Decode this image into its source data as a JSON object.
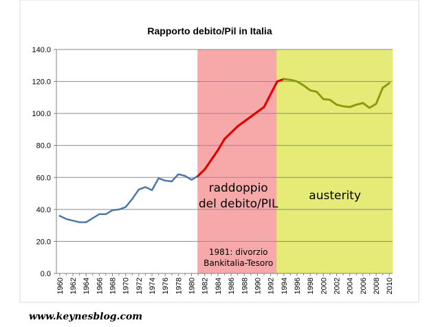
{
  "colors": {
    "pre_1981_line": "#4a78a8",
    "divorce_line": "#e00000",
    "austerity_line": "#8c9a10",
    "divorce_band": "#f7a9a9",
    "austerity_band": "#e6ea76",
    "gridline": "#8a8a8a"
  },
  "watermark": "www.keynesblog.com",
  "chart_data": {
    "type": "line",
    "title": "Rapporto debito/Pil in Italia",
    "xlabel": "",
    "ylabel": "",
    "ylim": [
      0,
      140
    ],
    "yticks": [
      "0.0",
      "20.0",
      "40.0",
      "60.0",
      "80.0",
      "100.0",
      "120.0",
      "140.0"
    ],
    "xlim": [
      1960,
      2010
    ],
    "xticks": [
      "1960",
      "1962",
      "1964",
      "1966",
      "1968",
      "1970",
      "1972",
      "1974",
      "1976",
      "1978",
      "1980",
      "1982",
      "1984",
      "1986",
      "1988",
      "1990",
      "1992",
      "1994",
      "1996",
      "1998",
      "2000",
      "2002",
      "2004",
      "2006",
      "2008",
      "2010"
    ],
    "grid": true,
    "legend": "none",
    "bands": [
      {
        "x_start": 1981,
        "x_end": 1993,
        "label": "raddoppio\ndel debito/PIL",
        "note": "1981: divorzio\nBankitalia-Tesoro"
      },
      {
        "x_start": 1993,
        "x_end": 2010,
        "label": "austerity"
      }
    ],
    "series": [
      {
        "x": [
          1960,
          1961,
          1962,
          1963,
          1964,
          1965,
          1966,
          1967,
          1968,
          1969,
          1970,
          1971,
          1972,
          1973,
          1974,
          1975,
          1976,
          1977,
          1978,
          1979,
          1980,
          1981
        ],
        "values": [
          36.0,
          34.0,
          33.0,
          32.0,
          32.0,
          34.5,
          37.0,
          37.0,
          39.5,
          40.0,
          41.5,
          46.5,
          52.5,
          54.0,
          52.0,
          59.5,
          58.0,
          57.5,
          62.0,
          61.0,
          58.5,
          61.0
        ]
      },
      {
        "x": [
          1981,
          1982,
          1983,
          1984,
          1985,
          1986,
          1987,
          1988,
          1989,
          1990,
          1991,
          1992,
          1993,
          1994
        ],
        "values": [
          61.0,
          65.0,
          71.0,
          77.0,
          84.0,
          88.0,
          92.0,
          95.0,
          98.0,
          101.0,
          104.0,
          112.0,
          120.0,
          121.5
        ]
      },
      {
        "x": [
          1994,
          1995,
          1996,
          1997,
          1998,
          1999,
          2000,
          2001,
          2002,
          2003,
          2004,
          2005,
          2006,
          2007,
          2008,
          2009,
          2010
        ],
        "values": [
          121.5,
          121.0,
          120.0,
          117.5,
          114.5,
          113.5,
          109.0,
          108.5,
          105.5,
          104.5,
          104.0,
          105.5,
          106.5,
          103.5,
          106.0,
          116.0,
          119.0
        ]
      }
    ]
  }
}
